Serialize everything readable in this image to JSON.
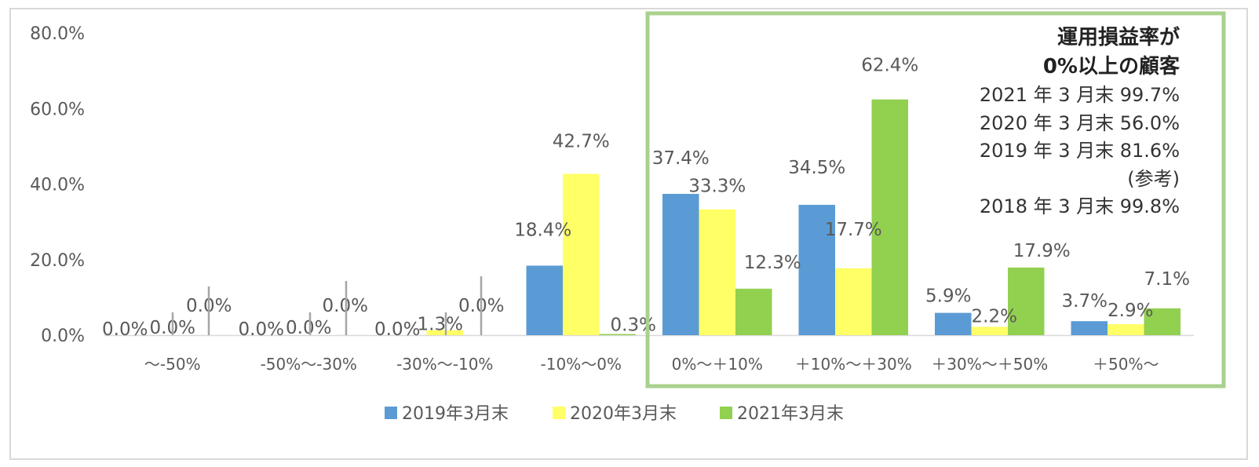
{
  "chart_data": {
    "type": "bar",
    "categories": [
      "～-50%",
      "-50%～-30%",
      "-30%～-10%",
      "-10%～0%",
      "0%～＋10%",
      "＋10%～＋30%",
      "＋30%～＋50%",
      "＋50%～"
    ],
    "series": [
      {
        "name": "2019年3月末",
        "color": "#5b9bd5",
        "values": [
          0.0,
          0.0,
          0.0,
          18.4,
          37.4,
          34.5,
          5.9,
          3.7
        ],
        "labels": [
          "0.0%",
          "0.0%",
          "0.0%",
          "18.4%",
          "37.4%",
          "34.5%",
          "5.9%",
          "3.7%"
        ]
      },
      {
        "name": "2020年3月末",
        "color": "#ffff66",
        "values": [
          0.0,
          0.0,
          1.3,
          42.7,
          33.3,
          17.7,
          2.2,
          2.9
        ],
        "labels": [
          "0.0%",
          "0.0%",
          "1.3%",
          "42.7%",
          "33.3%",
          "17.7%",
          "2.2%",
          "2.9%"
        ]
      },
      {
        "name": "2021年3月末",
        "color": "#92d050",
        "values": [
          0.0,
          0.0,
          0.0,
          0.3,
          12.3,
          62.4,
          17.9,
          7.1
        ],
        "labels": [
          "0.0%",
          "0.0%",
          "0.0%",
          "0.3%",
          "12.3%",
          "62.4%",
          "17.9%",
          "7.1%"
        ]
      }
    ],
    "yticks": [
      "0.0%",
      "20.0%",
      "40.0%",
      "60.0%",
      "80.0%"
    ],
    "ylim": [
      0,
      80
    ],
    "legend_position": "bottom",
    "grid": false,
    "highlight": {
      "border_color": "#a9d18e",
      "title_lines": [
        "運用損益率が",
        "0%以上の顧客"
      ],
      "lines": [
        "2021 年 3 月末  99.7%",
        "2020 年 3 月末  56.0%",
        "2019 年 3 月末  81.6%",
        "(参考)",
        "2018 年 3 月末  99.8%"
      ]
    }
  }
}
